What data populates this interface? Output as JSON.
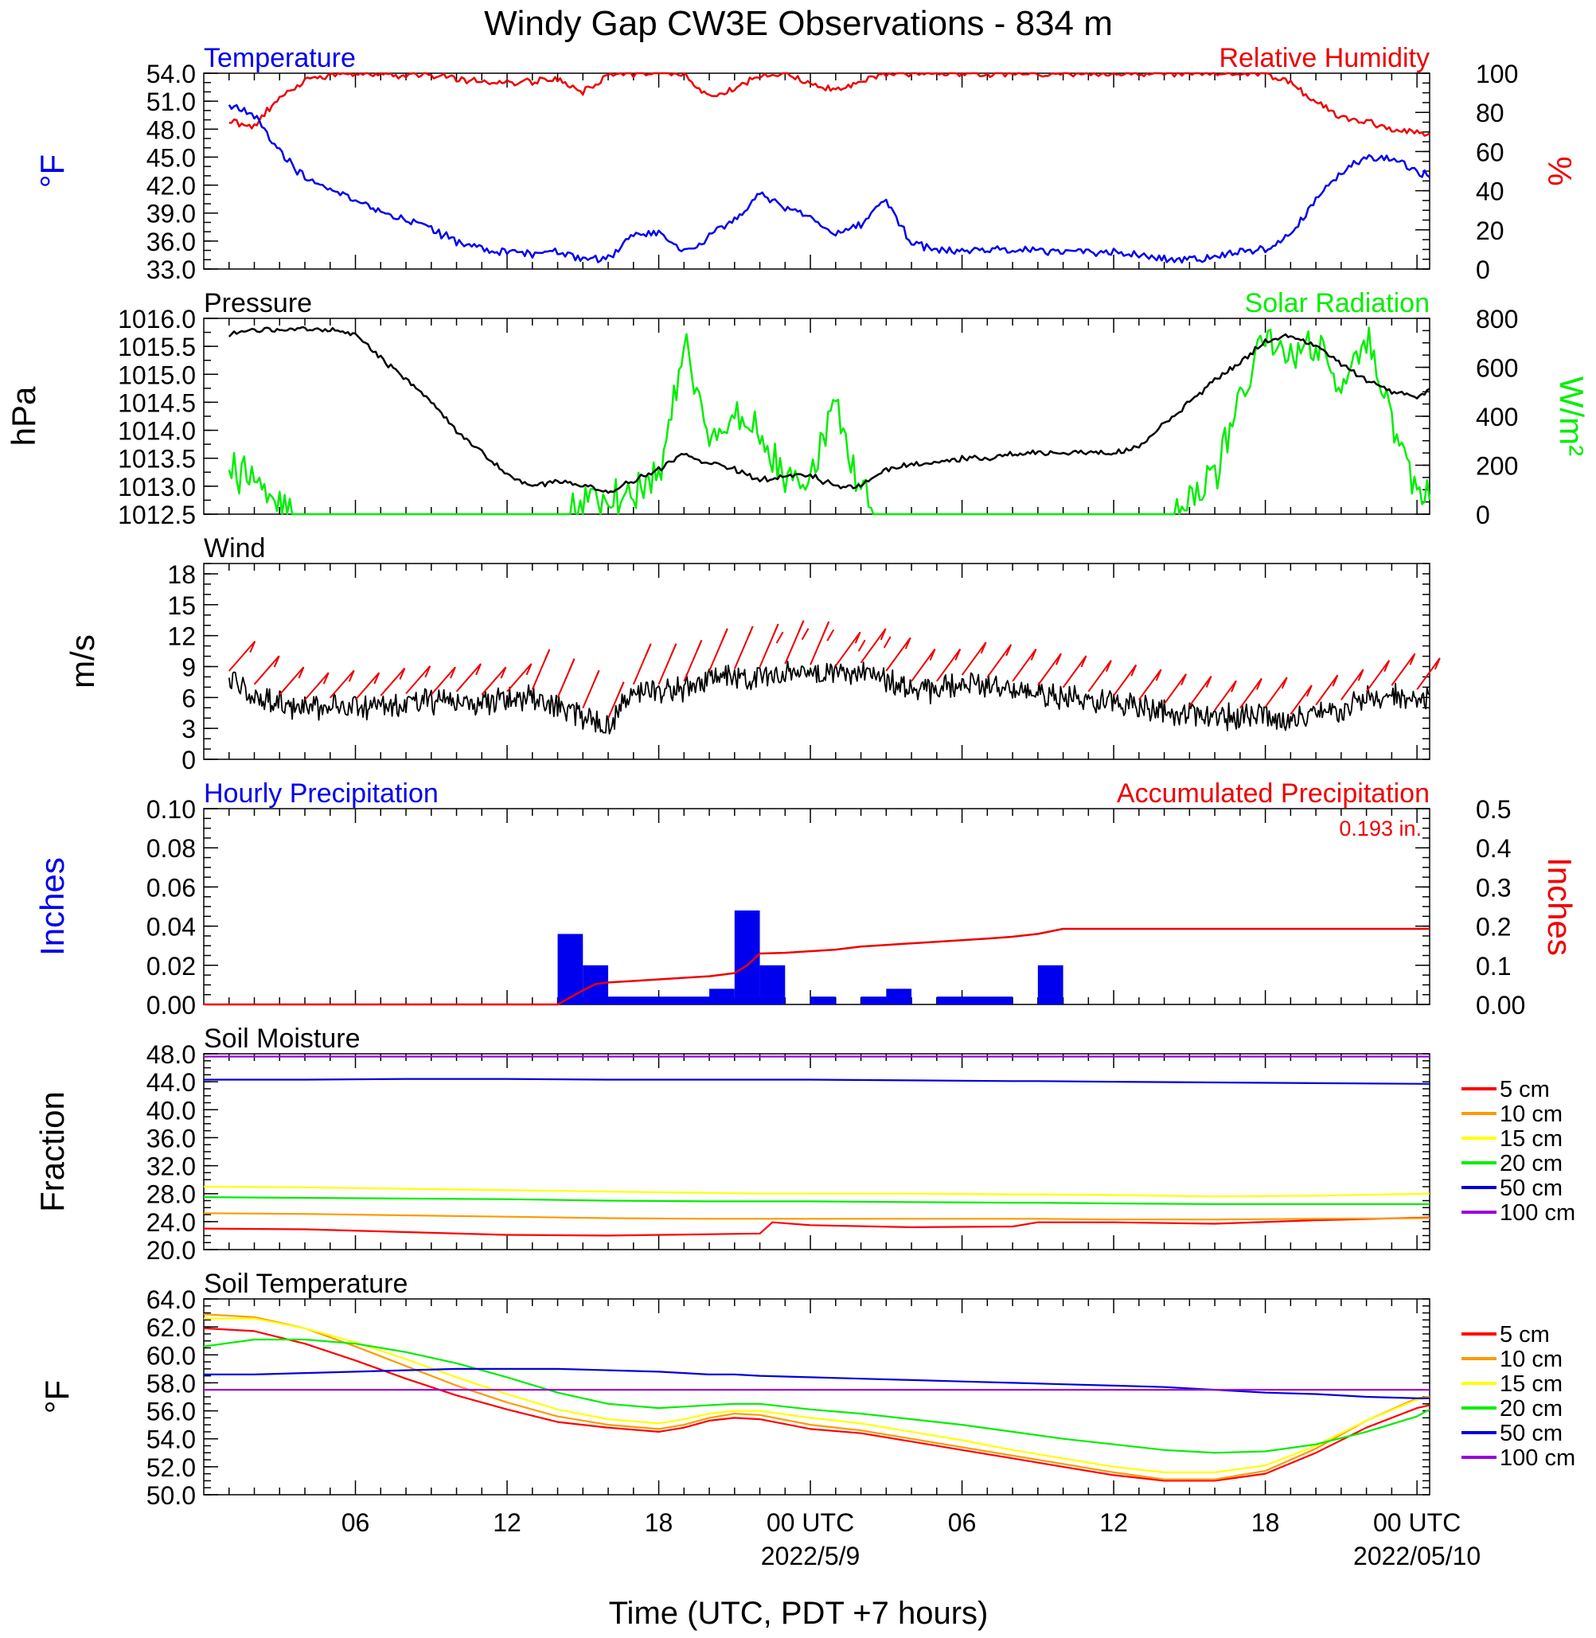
{
  "title": "Windy Gap CW3E Observations - 834 m",
  "xaxis": {
    "label": "Time (UTC, PDT +7 hours)",
    "ticks": [
      "06",
      "12",
      "18",
      "00 UTC",
      "06",
      "12",
      "18",
      "00 UTC"
    ],
    "dates": [
      "2022/5/9",
      "2022/05/10"
    ]
  },
  "legend": [
    "5 cm",
    "10 cm",
    "15 cm",
    "20 cm",
    "50 cm",
    "100 cm"
  ],
  "colors": {
    "5 cm": "#ff0000",
    "10 cm": "#ff9900",
    "15 cm": "#ffff00",
    "20 cm": "#00ee00",
    "50 cm": "#0000dd",
    "100 cm": "#9900dd"
  },
  "chart_data": [
    {
      "type": "line",
      "left_label": "Temperature",
      "right_label": "Relative Humidity",
      "ylabel": "°F",
      "ylabel2": "%",
      "ylim": [
        33,
        54
      ],
      "ylim2": [
        0,
        100
      ],
      "yticks": [
        "33.0",
        "36.0",
        "39.0",
        "42.0",
        "45.0",
        "48.0",
        "51.0",
        "54.0"
      ],
      "yticks2": [
        "0",
        "20",
        "40",
        "60",
        "80",
        "100"
      ],
      "x_hours": [
        1,
        2,
        3,
        4,
        5,
        6,
        7,
        8,
        9,
        10,
        11,
        12,
        13,
        14,
        15,
        16,
        17,
        18,
        19,
        20,
        21,
        22,
        23,
        24,
        25,
        26,
        27,
        28,
        29,
        30,
        31,
        32,
        33,
        34,
        35,
        36,
        37,
        38,
        39,
        40,
        41,
        42,
        43,
        44,
        45,
        46,
        47,
        48,
        48.5
      ],
      "series": [
        {
          "name": "Temperature",
          "values": [
            50.6,
            49.5,
            45.5,
            42.8,
            41.5,
            40.2,
            39.2,
            38.2,
            37.2,
            36.0,
            35.2,
            34.8,
            34.6,
            34.9,
            34.2,
            34.2,
            36.8,
            36.8,
            34.8,
            36.5,
            38.2,
            41.0,
            39.5,
            38.8,
            36.5,
            37.8,
            40.5,
            35.8,
            35.0,
            35.0,
            35.0,
            35.0,
            35.0,
            34.9,
            34.8,
            34.8,
            34.5,
            34.0,
            34.0,
            34.2,
            34.8,
            35.2,
            36.8,
            40.5,
            43.5,
            44.8,
            45.0,
            43.5,
            43.0
          ]
        },
        {
          "name": "Relative Humidity",
          "values": [
            76,
            73,
            88,
            96,
            99,
            100,
            100,
            99,
            99,
            97,
            96,
            95,
            96,
            97,
            90,
            100,
            100,
            100,
            100,
            88,
            92,
            99,
            100,
            95,
            91,
            96,
            100,
            100,
            100,
            100,
            100,
            100,
            100,
            100,
            100,
            100,
            100,
            100,
            100,
            100,
            100,
            100,
            95,
            85,
            78,
            75,
            72,
            70,
            68
          ]
        }
      ]
    },
    {
      "type": "line",
      "left_label": "Pressure",
      "right_label": "Solar Radiation",
      "ylabel": "hPa",
      "ylabel2": "W/m²",
      "ylim": [
        1012.5,
        1016.0
      ],
      "ylim2": [
        0,
        800
      ],
      "yticks": [
        "1012.5",
        "1013.0",
        "1013.5",
        "1014.0",
        "1014.5",
        "1015.0",
        "1015.5",
        "1016.0"
      ],
      "yticks2": [
        "0",
        "200",
        "400",
        "600",
        "800"
      ],
      "x_hours": [
        1,
        2,
        3,
        4,
        5,
        6,
        7,
        8,
        9,
        10,
        11,
        12,
        13,
        14,
        15,
        16,
        17,
        18,
        19,
        20,
        21,
        22,
        23,
        24,
        25,
        26,
        27,
        28,
        29,
        30,
        31,
        32,
        33,
        34,
        35,
        36,
        37,
        38,
        39,
        40,
        41,
        42,
        43,
        44,
        45,
        46,
        47,
        48,
        48.5
      ],
      "series": [
        {
          "name": "Pressure",
          "values": [
            1015.7,
            1015.8,
            1015.8,
            1015.8,
            1015.8,
            1015.7,
            1015.3,
            1014.9,
            1014.5,
            1014.0,
            1013.6,
            1013.2,
            1013.0,
            1013.1,
            1013.0,
            1012.9,
            1013.1,
            1013.3,
            1013.6,
            1013.4,
            1013.3,
            1013.1,
            1013.2,
            1013.2,
            1013.0,
            1013.0,
            1013.3,
            1013.4,
            1013.4,
            1013.5,
            1013.5,
            1013.6,
            1013.6,
            1013.6,
            1013.6,
            1013.6,
            1013.7,
            1014.1,
            1014.5,
            1014.9,
            1015.2,
            1015.6,
            1015.7,
            1015.5,
            1015.2,
            1014.9,
            1014.7,
            1014.6,
            1014.7
          ]
        },
        {
          "name": "Solar Radiation",
          "values": [
            190,
            140,
            20,
            0,
            0,
            0,
            0,
            0,
            0,
            0,
            0,
            0,
            0,
            0,
            30,
            80,
            60,
            160,
            700,
            300,
            420,
            330,
            150,
            160,
            430,
            90,
            0,
            0,
            0,
            0,
            0,
            0,
            0,
            0,
            0,
            0,
            0,
            0,
            50,
            150,
            450,
            750,
            650,
            700,
            540,
            720,
            400,
            90,
            100
          ]
        }
      ]
    },
    {
      "type": "line",
      "left_label": "Wind",
      "ylabel": "m/s",
      "ylim": [
        0,
        19
      ],
      "yticks": [
        "0",
        "3",
        "6",
        "9",
        "12",
        "15",
        "18"
      ],
      "x_hours": [
        1,
        2,
        3,
        4,
        5,
        6,
        7,
        8,
        9,
        10,
        11,
        12,
        13,
        14,
        15,
        16,
        17,
        18,
        19,
        20,
        21,
        22,
        23,
        24,
        25,
        26,
        27,
        28,
        29,
        30,
        31,
        32,
        33,
        34,
        35,
        36,
        37,
        38,
        39,
        40,
        41,
        42,
        43,
        44,
        45,
        46,
        47,
        48,
        48.5
      ],
      "series": [
        {
          "name": "Wind",
          "values": [
            7.8,
            6.5,
            5.5,
            5.0,
            5.2,
            5.0,
            5.4,
            5.6,
            5.5,
            5.8,
            5.5,
            5.8,
            6.0,
            5.2,
            4.2,
            3.2,
            6.5,
            6.5,
            6.8,
            7.8,
            8.0,
            8.2,
            8.5,
            8.4,
            8.3,
            8.6,
            7.8,
            6.8,
            6.8,
            7.4,
            7.2,
            6.8,
            6.4,
            6.2,
            5.8,
            5.4,
            5.0,
            4.6,
            4.4,
            4.0,
            4.2,
            4.3,
            3.6,
            4.5,
            5.0,
            5.8,
            6.4,
            6.0,
            5.8
          ]
        }
      ]
    },
    {
      "type": "bar",
      "left_label": "Hourly Precipitation",
      "right_label": "Accumulated Precipitation",
      "annotation": "0.193 in.",
      "ylabel": "Inches",
      "ylabel2": "Inches",
      "ylim": [
        0,
        0.1
      ],
      "ylim2": [
        0,
        0.5
      ],
      "yticks": [
        "0.00",
        "0.02",
        "0.04",
        "0.06",
        "0.08",
        "0.10"
      ],
      "yticks2": [
        "0.00",
        "0.1",
        "0.2",
        "0.3",
        "0.4",
        "0.5"
      ],
      "bars": [
        {
          "hour": 14,
          "value": 0.036
        },
        {
          "hour": 15,
          "value": 0.02
        },
        {
          "hour": 16,
          "value": 0.004
        },
        {
          "hour": 17,
          "value": 0.004
        },
        {
          "hour": 18,
          "value": 0.004
        },
        {
          "hour": 19,
          "value": 0.004
        },
        {
          "hour": 20,
          "value": 0.008
        },
        {
          "hour": 21,
          "value": 0.048
        },
        {
          "hour": 22,
          "value": 0.02
        },
        {
          "hour": 24,
          "value": 0.004
        },
        {
          "hour": 26,
          "value": 0.004
        },
        {
          "hour": 27,
          "value": 0.008
        },
        {
          "hour": 29,
          "value": 0.004
        },
        {
          "hour": 30,
          "value": 0.004
        },
        {
          "hour": 31,
          "value": 0.004
        },
        {
          "hour": 33,
          "value": 0.02
        }
      ],
      "accumulated": {
        "name": "Accumulated Precipitation",
        "x_hours": [
          0,
          14,
          15,
          15.5,
          16,
          17,
          18,
          19,
          20,
          21,
          21.5,
          22,
          23,
          24,
          25,
          26,
          27,
          28,
          29,
          30,
          31,
          32,
          33,
          34,
          48.5
        ],
        "values": [
          0,
          0,
          0.036,
          0.052,
          0.056,
          0.06,
          0.064,
          0.068,
          0.072,
          0.08,
          0.1,
          0.13,
          0.132,
          0.136,
          0.14,
          0.148,
          0.152,
          0.156,
          0.16,
          0.164,
          0.168,
          0.173,
          0.18,
          0.193,
          0.193
        ]
      }
    },
    {
      "type": "line",
      "left_label": "Soil Moisture",
      "ylabel": "Fraction",
      "ylim": [
        20,
        48
      ],
      "yticks": [
        "20.0",
        "24.0",
        "28.0",
        "32.0",
        "36.0",
        "40.0",
        "44.0",
        "48.0"
      ],
      "x_hours": [
        0,
        4,
        8,
        12,
        16,
        20,
        22,
        22.5,
        24,
        28,
        32,
        33,
        36,
        40,
        44,
        48.5
      ],
      "series": [
        {
          "name": "5 cm",
          "values": [
            23.0,
            22.9,
            22.5,
            22.1,
            22.0,
            22.2,
            22.3,
            23.9,
            23.5,
            23.2,
            23.3,
            23.9,
            23.9,
            23.7,
            24.2,
            24.6
          ]
        },
        {
          "name": "10 cm",
          "values": [
            25.2,
            25.1,
            24.9,
            24.7,
            24.5,
            24.4,
            24.4,
            24.4,
            24.4,
            24.4,
            24.4,
            24.4,
            24.3,
            24.3,
            24.4,
            24.5
          ]
        },
        {
          "name": "15 cm",
          "values": [
            29.0,
            28.9,
            28.7,
            28.5,
            28.3,
            28.1,
            28.0,
            28.0,
            28.0,
            28.0,
            27.9,
            27.9,
            27.8,
            27.6,
            27.7,
            28.0
          ]
        },
        {
          "name": "20 cm",
          "values": [
            27.5,
            27.4,
            27.3,
            27.2,
            27.0,
            26.9,
            26.9,
            26.9,
            26.9,
            26.8,
            26.7,
            26.7,
            26.6,
            26.5,
            26.5,
            26.5
          ]
        },
        {
          "name": "50 cm",
          "values": [
            44.3,
            44.3,
            44.4,
            44.4,
            44.3,
            44.3,
            44.3,
            44.3,
            44.3,
            44.2,
            44.1,
            44.1,
            44.0,
            43.9,
            43.8,
            43.7
          ]
        },
        {
          "name": "100 cm",
          "values": [
            47.6,
            47.6,
            47.6,
            47.6,
            47.6,
            47.6,
            47.6,
            47.6,
            47.6,
            47.6,
            47.6,
            47.6,
            47.6,
            47.6,
            47.6,
            47.6
          ]
        }
      ]
    },
    {
      "type": "line",
      "left_label": "Soil Temperature",
      "ylabel": "°F",
      "ylim": [
        50,
        64
      ],
      "yticks": [
        "50.0",
        "52.0",
        "54.0",
        "56.0",
        "58.0",
        "60.0",
        "62.0",
        "64.0"
      ],
      "x_hours": [
        0,
        2,
        4,
        6,
        8,
        10,
        12,
        14,
        16,
        18,
        19,
        20,
        21,
        22,
        24,
        26,
        28,
        30,
        32,
        34,
        36,
        38,
        40,
        42,
        44,
        46,
        48,
        48.5
      ],
      "series": [
        {
          "name": "5 cm",
          "values": [
            61.9,
            61.7,
            60.8,
            59.6,
            58.3,
            57.1,
            56.1,
            55.2,
            54.8,
            54.5,
            54.8,
            55.3,
            55.5,
            55.4,
            54.7,
            54.4,
            53.8,
            53.2,
            52.6,
            52.0,
            51.4,
            51.0,
            51.0,
            51.5,
            53.0,
            54.8,
            56.2,
            56.4
          ]
        },
        {
          "name": "10 cm",
          "values": [
            62.9,
            62.7,
            61.9,
            60.6,
            59.2,
            57.8,
            56.6,
            55.6,
            55.0,
            54.7,
            55.0,
            55.5,
            55.8,
            55.7,
            55.0,
            54.6,
            54.0,
            53.4,
            52.8,
            52.2,
            51.6,
            51.1,
            51.1,
            51.7,
            53.3,
            55.3,
            56.9,
            57.0
          ]
        },
        {
          "name": "15 cm",
          "values": [
            62.6,
            62.6,
            61.9,
            60.9,
            59.7,
            58.4,
            57.2,
            56.1,
            55.4,
            55.1,
            55.4,
            55.8,
            56.0,
            56.0,
            55.5,
            55.1,
            54.5,
            53.9,
            53.2,
            52.6,
            52.0,
            51.6,
            51.6,
            52.1,
            53.5,
            55.3,
            56.8,
            56.9
          ]
        },
        {
          "name": "20 cm",
          "values": [
            60.6,
            61.1,
            61.1,
            60.8,
            60.2,
            59.4,
            58.4,
            57.3,
            56.5,
            56.2,
            56.3,
            56.4,
            56.5,
            56.5,
            56.1,
            55.8,
            55.4,
            55.0,
            54.5,
            54.0,
            53.6,
            53.2,
            53.0,
            53.1,
            53.6,
            54.5,
            55.6,
            56.1
          ]
        },
        {
          "name": "50 cm",
          "values": [
            58.6,
            58.6,
            58.7,
            58.8,
            58.9,
            59.0,
            59.0,
            59.0,
            58.9,
            58.8,
            58.7,
            58.6,
            58.6,
            58.5,
            58.4,
            58.3,
            58.2,
            58.1,
            58.0,
            57.9,
            57.8,
            57.7,
            57.5,
            57.3,
            57.2,
            57.0,
            56.9,
            56.9
          ]
        },
        {
          "name": "100 cm",
          "values": [
            57.5,
            57.5,
            57.5,
            57.5,
            57.5,
            57.5,
            57.5,
            57.5,
            57.5,
            57.5,
            57.5,
            57.5,
            57.5,
            57.5,
            57.5,
            57.5,
            57.5,
            57.5,
            57.5,
            57.5,
            57.5,
            57.5,
            57.5,
            57.5,
            57.5,
            57.5,
            57.5,
            57.5
          ]
        }
      ]
    }
  ]
}
